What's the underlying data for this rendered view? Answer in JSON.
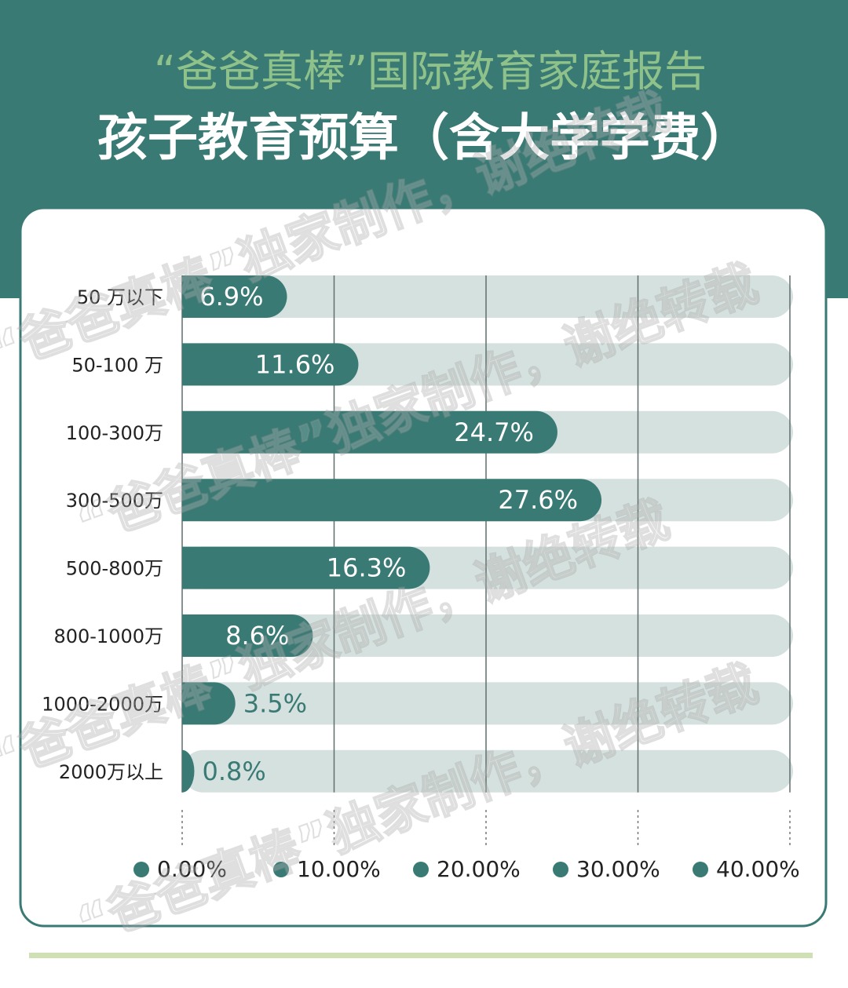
{
  "chart_data": {
    "type": "bar",
    "orientation": "horizontal",
    "supertitle": "“爸爸真棒”国际教育家庭报告",
    "title": "孩子教育预算（含大学学费）",
    "watermark": "“爸爸真棒”独家制作，谢绝转载",
    "categories": [
      "50 万以下",
      "50-100 万",
      "100-300万",
      "300-500万",
      "500-800万",
      "800-1000万",
      "1000-2000万",
      "2000万以上"
    ],
    "values": [
      6.9,
      11.6,
      24.7,
      27.6,
      16.3,
      8.6,
      3.5,
      0.8
    ],
    "value_labels": [
      "6.9%",
      "11.6%",
      "24.7%",
      "27.6%",
      "16.3%",
      "8.6%",
      "3.5%",
      "0.8%"
    ],
    "color": "#3a7a74",
    "track_color": "#d5e1df",
    "xlim": [
      0,
      40
    ],
    "xticks": [
      {
        "value": 0,
        "label": "0.00%"
      },
      {
        "value": 10,
        "label": "10.00%"
      },
      {
        "value": 20,
        "label": "20.00%"
      },
      {
        "value": 30,
        "label": "30.00%"
      },
      {
        "value": 40,
        "label": "40.00%"
      }
    ],
    "grid": true
  }
}
